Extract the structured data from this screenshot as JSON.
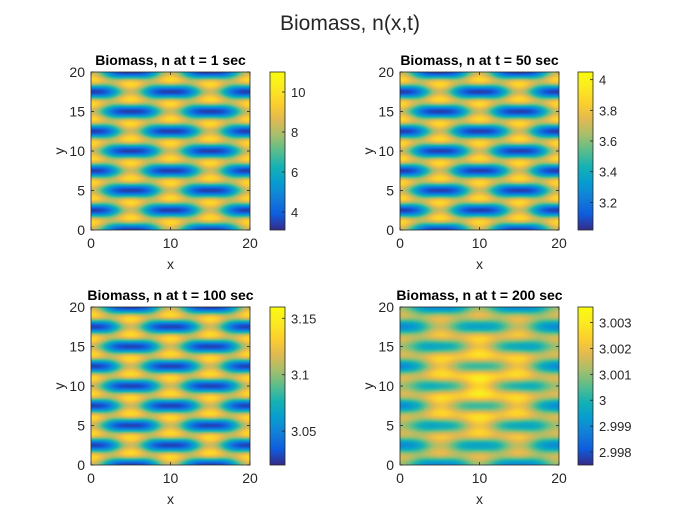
{
  "figure": {
    "suptitle": "Biomass, n(x,t)"
  },
  "chart_data": [
    {
      "type": "heatmap",
      "title": "Biomass, n at t = 1 sec",
      "xlabel": "x",
      "ylabel": "y",
      "xlim": [
        0,
        20
      ],
      "ylim": [
        0,
        20
      ],
      "xticks": [
        0,
        10,
        20
      ],
      "yticks": [
        0,
        5,
        10,
        15,
        20
      ],
      "pattern": "hexagonal spots, strong contrast",
      "clim": [
        3.1,
        11.0
      ],
      "mean": 7.0,
      "amplitude": 4.0,
      "lowfreq": 0.0,
      "colorbar_ticks": [
        4,
        6,
        8,
        10
      ],
      "colorbar_ticklabels": [
        "4",
        "6",
        "8",
        "10"
      ]
    },
    {
      "type": "heatmap",
      "title": "Biomass, n at t = 50 sec",
      "xlabel": "x",
      "ylabel": "y",
      "xlim": [
        0,
        20
      ],
      "ylim": [
        0,
        20
      ],
      "xticks": [
        0,
        10,
        20
      ],
      "yticks": [
        0,
        5,
        10,
        15,
        20
      ],
      "pattern": "hexagonal spots, strong contrast",
      "clim": [
        3.02,
        4.05
      ],
      "mean": 3.53,
      "amplitude": 0.52,
      "lowfreq": 0.0,
      "colorbar_ticks": [
        3.2,
        3.4,
        3.6,
        3.8,
        4.0
      ],
      "colorbar_ticklabels": [
        "3.2",
        "3.4",
        "3.6",
        "3.8",
        "4"
      ]
    },
    {
      "type": "heatmap",
      "title": "Biomass, n at t = 100 sec",
      "xlabel": "x",
      "ylabel": "y",
      "xlim": [
        0,
        20
      ],
      "ylim": [
        0,
        20
      ],
      "xticks": [
        0,
        10,
        20
      ],
      "yticks": [
        0,
        5,
        10,
        15,
        20
      ],
      "pattern": "hexagonal spots, moderate contrast",
      "clim": [
        3.02,
        3.16
      ],
      "mean": 3.09,
      "amplitude": 0.07,
      "lowfreq": 0.0,
      "colorbar_ticks": [
        3.05,
        3.1,
        3.15
      ],
      "colorbar_ticklabels": [
        "3.05",
        "3.1",
        "3.15"
      ]
    },
    {
      "type": "heatmap",
      "title": "Biomass, n at t = 200 sec",
      "xlabel": "x",
      "ylabel": "y",
      "xlim": [
        0,
        20
      ],
      "ylim": [
        0,
        20
      ],
      "xticks": [
        0,
        10,
        20
      ],
      "yticks": [
        0,
        5,
        10,
        15,
        20
      ],
      "pattern": "faint spots, near uniform",
      "clim": [
        2.9975,
        3.0036
      ],
      "mean": 3.0005,
      "amplitude": 0.0017,
      "lowfreq": 0.0012,
      "colorbar_ticks": [
        2.998,
        2.999,
        3.0,
        3.001,
        3.002,
        3.003
      ],
      "colorbar_ticklabels": [
        "2.998",
        "2.999",
        "3",
        "3.001",
        "3.002",
        "3.003"
      ]
    }
  ]
}
